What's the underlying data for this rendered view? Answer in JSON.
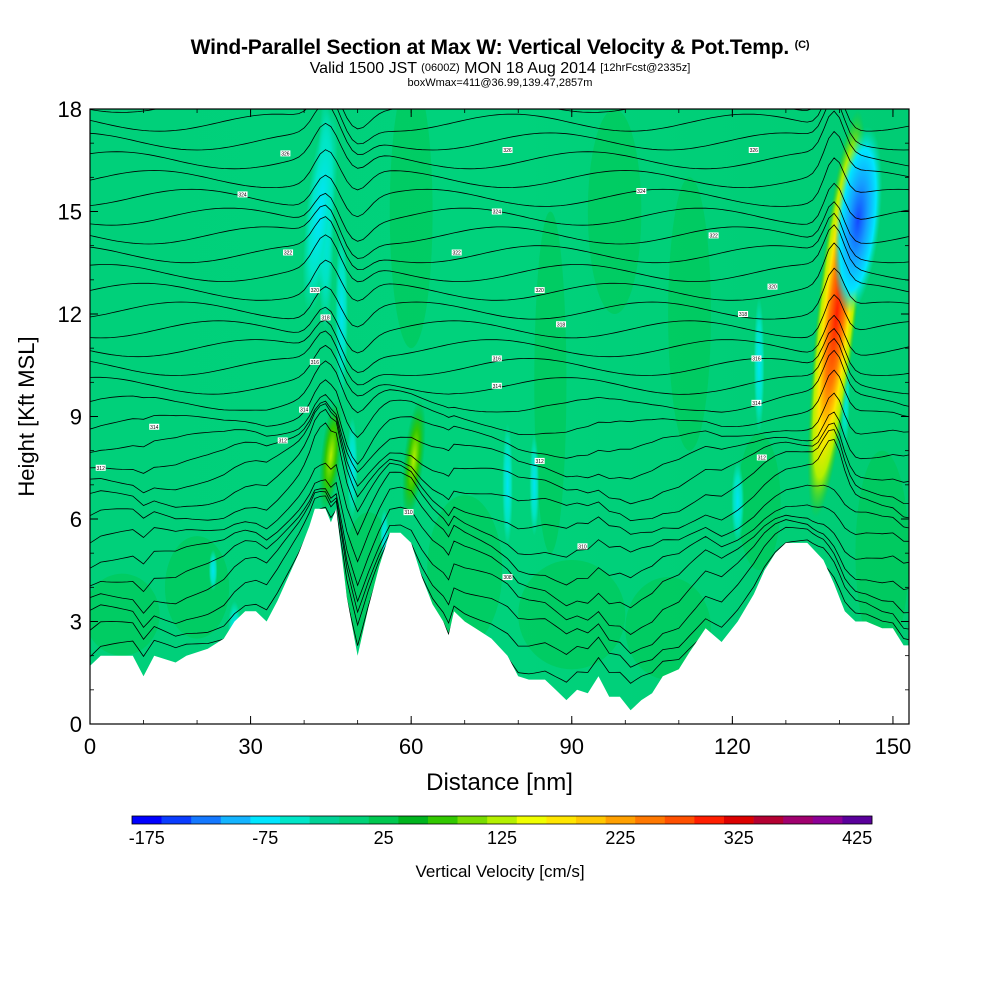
{
  "title": "Wind-Parallel Section at Max W: Vertical Velocity & Pot.Temp.",
  "title_mark": "(C)",
  "subtitle_main": "Valid 1500 JST",
  "subtitle_z": "(0600Z)",
  "subtitle_date": "MON 18 Aug 2014",
  "subtitle_fcst": "[12hrFcst@2335z]",
  "subtitle2": "boxWmax=411@36.99,139.47,2857m",
  "chart_data": {
    "type": "heatmap",
    "xlabel": "Distance [nm]",
    "ylabel": "Height [Kft MSL]",
    "xlim": [
      0,
      153
    ],
    "ylim": [
      0,
      18
    ],
    "x_ticks": [
      "0",
      "30",
      "60",
      "90",
      "120",
      "150"
    ],
    "y_ticks": [
      "0",
      "3",
      "6",
      "9",
      "12",
      "15",
      "18"
    ],
    "colorbar": {
      "label": "Vertical Velocity [cm/s]",
      "tick_labels": [
        "-175",
        "-75",
        "25",
        "125",
        "225",
        "325",
        "425"
      ],
      "colors": [
        "#0000ff",
        "#0a3cff",
        "#1478ff",
        "#14b4ff",
        "#00e6ff",
        "#00e6c8",
        "#00d296",
        "#00d278",
        "#00c850",
        "#00b41e",
        "#32c800",
        "#78dc00",
        "#b4f000",
        "#f0ff00",
        "#ffe600",
        "#ffc800",
        "#ffa000",
        "#ff7800",
        "#ff5000",
        "#ff1e00",
        "#dc0000",
        "#b40032",
        "#a0006e",
        "#8c0096",
        "#5a009b"
      ]
    },
    "terrain_kft": [
      [
        0,
        1.7
      ],
      [
        2,
        2.0
      ],
      [
        8,
        2.0
      ],
      [
        10,
        1.4
      ],
      [
        12,
        2.0
      ],
      [
        16,
        1.8
      ],
      [
        18,
        2.0
      ],
      [
        22,
        2.2
      ],
      [
        25,
        2.5
      ],
      [
        27,
        3.0
      ],
      [
        29,
        3.3
      ],
      [
        31,
        3.3
      ],
      [
        33,
        3.0
      ],
      [
        35,
        3.6
      ],
      [
        37,
        4.3
      ],
      [
        39,
        5.0
      ],
      [
        41,
        5.8
      ],
      [
        42,
        6.3
      ],
      [
        44,
        6.3
      ],
      [
        45,
        5.9
      ],
      [
        46,
        6.3
      ],
      [
        48,
        3.7
      ],
      [
        50,
        2.0
      ],
      [
        52,
        3.4
      ],
      [
        54,
        4.6
      ],
      [
        56,
        5.6
      ],
      [
        58,
        5.6
      ],
      [
        60,
        5.3
      ],
      [
        62,
        4.3
      ],
      [
        64,
        3.5
      ],
      [
        66,
        3.0
      ],
      [
        67,
        2.6
      ],
      [
        68,
        3.3
      ],
      [
        70,
        3.0
      ],
      [
        72,
        2.8
      ],
      [
        75,
        2.5
      ],
      [
        78,
        2.0
      ],
      [
        80,
        1.4
      ],
      [
        82,
        1.3
      ],
      [
        85,
        1.3
      ],
      [
        87,
        1.0
      ],
      [
        89,
        0.7
      ],
      [
        91,
        1.0
      ],
      [
        93,
        0.9
      ],
      [
        95,
        1.4
      ],
      [
        97,
        0.8
      ],
      [
        99,
        0.8
      ],
      [
        101,
        0.4
      ],
      [
        103,
        0.7
      ],
      [
        105,
        0.9
      ],
      [
        107,
        1.4
      ],
      [
        110,
        1.6
      ],
      [
        112,
        2.1
      ],
      [
        115,
        2.8
      ],
      [
        118,
        2.4
      ],
      [
        121,
        3.0
      ],
      [
        124,
        3.8
      ],
      [
        126,
        4.5
      ],
      [
        128,
        5.0
      ],
      [
        130,
        5.3
      ],
      [
        134,
        5.3
      ],
      [
        137,
        4.8
      ],
      [
        139,
        4.1
      ],
      [
        141,
        3.3
      ],
      [
        143,
        3.0
      ],
      [
        145,
        3.0
      ],
      [
        148,
        2.8
      ],
      [
        150,
        2.8
      ],
      [
        152,
        2.3
      ],
      [
        153,
        2.3
      ]
    ],
    "w_features": [
      {
        "x": 139.5,
        "ytop": 18,
        "ybot": 6,
        "w_max": 411
      },
      {
        "x": 143.5,
        "ytop": 17.5,
        "ybot": 12,
        "w_min": -175
      },
      {
        "x": 45,
        "ytop": 9.5,
        "ybot": 6.2,
        "w_max": 150
      },
      {
        "x": 60.5,
        "ytop": 9.5,
        "ybot": 6.0,
        "w_max": 90
      },
      {
        "x": 43,
        "ytop": 18,
        "ybot": 12,
        "w_min": -80
      }
    ],
    "theta_contour_labels": [
      {
        "x": 2,
        "y": 7.5,
        "text": "312"
      },
      {
        "x": 12,
        "y": 8.7,
        "text": "314"
      },
      {
        "x": 28.5,
        "y": 15.5,
        "text": "324"
      },
      {
        "x": 36.5,
        "y": 16.7,
        "text": "326"
      },
      {
        "x": 37,
        "y": 13.8,
        "text": "322"
      },
      {
        "x": 42,
        "y": 12.7,
        "text": "320"
      },
      {
        "x": 44,
        "y": 11.9,
        "text": "318"
      },
      {
        "x": 42,
        "y": 10.6,
        "text": "316"
      },
      {
        "x": 40,
        "y": 9.2,
        "text": "314"
      },
      {
        "x": 36,
        "y": 8.3,
        "text": "312"
      },
      {
        "x": 59.5,
        "y": 6.2,
        "text": "310"
      },
      {
        "x": 68.5,
        "y": 13.8,
        "text": "322"
      },
      {
        "x": 76,
        "y": 15.0,
        "text": "324"
      },
      {
        "x": 78,
        "y": 16.8,
        "text": "326"
      },
      {
        "x": 84,
        "y": 12.7,
        "text": "320"
      },
      {
        "x": 88,
        "y": 11.7,
        "text": "318"
      },
      {
        "x": 76,
        "y": 10.7,
        "text": "316"
      },
      {
        "x": 76,
        "y": 9.9,
        "text": "314"
      },
      {
        "x": 84,
        "y": 7.7,
        "text": "312"
      },
      {
        "x": 92,
        "y": 5.2,
        "text": "310"
      },
      {
        "x": 78,
        "y": 4.3,
        "text": "308"
      },
      {
        "x": 103,
        "y": 15.6,
        "text": "324"
      },
      {
        "x": 116.5,
        "y": 14.3,
        "text": "322"
      },
      {
        "x": 124,
        "y": 16.8,
        "text": "326"
      },
      {
        "x": 127.5,
        "y": 12.8,
        "text": "320"
      },
      {
        "x": 122,
        "y": 12.0,
        "text": "318"
      },
      {
        "x": 124.5,
        "y": 10.7,
        "text": "316"
      },
      {
        "x": 124.5,
        "y": 9.4,
        "text": "314"
      },
      {
        "x": 125.5,
        "y": 7.8,
        "text": "312"
      }
    ]
  }
}
